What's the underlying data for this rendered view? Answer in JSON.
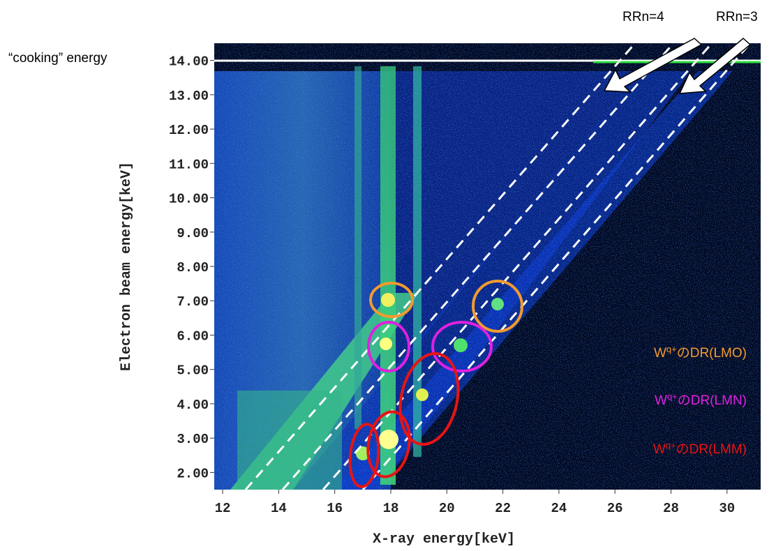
{
  "chart_data": {
    "type": "heatmap",
    "x_label": "X-ray energy[keV]",
    "y_label": "Electron beam energy[keV]",
    "xlim": [
      11.7,
      31.2
    ],
    "ylim": [
      1.5,
      14.5
    ],
    "xticks": [
      12,
      14,
      16,
      18,
      20,
      22,
      24,
      26,
      28,
      30
    ],
    "yticks": [
      {
        "value": 2,
        "label": "2.00"
      },
      {
        "value": 3,
        "label": "3.00"
      },
      {
        "value": 4,
        "label": "4.00"
      },
      {
        "value": 5,
        "label": "5.00"
      },
      {
        "value": 6,
        "label": "6.00"
      },
      {
        "value": 7,
        "label": "7.00"
      },
      {
        "value": 8,
        "label": "8.00"
      },
      {
        "value": 9,
        "label": "9.00"
      },
      {
        "value": 10,
        "label": "10.00"
      },
      {
        "value": 11,
        "label": "11.00"
      },
      {
        "value": 12,
        "label": "12.00"
      },
      {
        "value": 13,
        "label": "13.00"
      },
      {
        "value": 14,
        "label": "14.00"
      }
    ],
    "annotations": {
      "cooking": "“cooking” energy",
      "rr4": "RRn=4",
      "rr3": "RRn=3",
      "dr_labels": [
        {
          "base": "W",
          "sup": "q+",
          "rest": "のDR(LMO)",
          "color": "#f39a2e"
        },
        {
          "base": "W",
          "sup": "q+",
          "rest": "のDR(LMN)",
          "color": "#e020e0"
        },
        {
          "base": "W",
          "sup": "q+",
          "rest": "のDR(LMM)",
          "color": "#e81414"
        }
      ]
    }
  }
}
